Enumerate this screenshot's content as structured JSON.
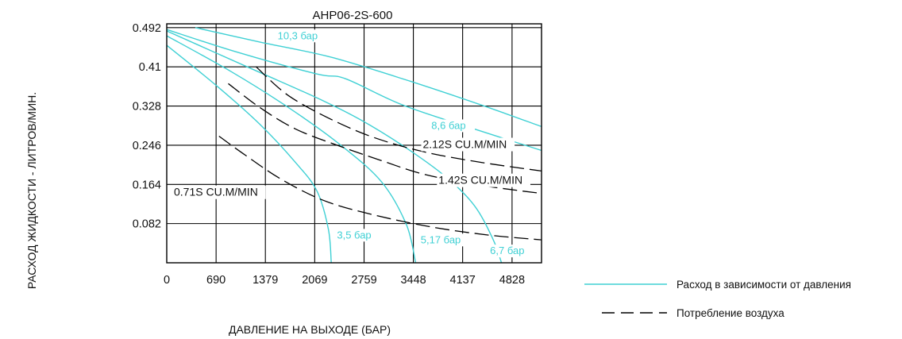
{
  "chart_data": {
    "type": "line",
    "title": "AHP06-2S-600",
    "xlabel": "ДАВЛЕНИЕ НА ВЫХОДЕ (БАР)",
    "ylabel": "РАСХОД ЖИДКОСТИ - ЛИТРОВ/МИН.",
    "xlim": [
      0,
      5240
    ],
    "ylim": [
      0,
      0.5
    ],
    "x_ticks": [
      0,
      690,
      1379,
      2069,
      2759,
      3448,
      4137,
      4828
    ],
    "x_tick_labels": [
      "0",
      "690",
      "1379",
      "2069",
      "2759",
      "3448",
      "4137",
      "4828"
    ],
    "y_ticks": [
      0.082,
      0.164,
      0.246,
      0.328,
      0.41,
      0.492
    ],
    "y_tick_labels": [
      "0.082",
      "0.164",
      "0.246",
      "0.328",
      "0.41",
      "0.492"
    ],
    "grid": true,
    "legend_position": "bottom-right",
    "legend": [
      {
        "label": "Расход в зависимости от давления",
        "style": "solid",
        "color": "#3fd0d4"
      },
      {
        "label": "Потребление воздуха",
        "style": "dashed",
        "color": "#000000"
      }
    ],
    "series": [
      {
        "name": "3,5 бар",
        "style": "solid",
        "color": "#3fd0d4",
        "label_at": [
          2380,
          0.051
        ],
        "points": [
          [
            0,
            0.455
          ],
          [
            700,
            0.37
          ],
          [
            1300,
            0.29
          ],
          [
            1800,
            0.21
          ],
          [
            2100,
            0.15
          ],
          [
            2260,
            0.07
          ],
          [
            2300,
            0.0
          ]
        ]
      },
      {
        "name": "5,17 бар",
        "style": "solid",
        "color": "#3fd0d4",
        "label_at": [
          3550,
          0.041
        ],
        "points": [
          [
            0,
            0.475
          ],
          [
            900,
            0.4
          ],
          [
            1700,
            0.325
          ],
          [
            2400,
            0.25
          ],
          [
            3000,
            0.17
          ],
          [
            3350,
            0.08
          ],
          [
            3480,
            0.0
          ]
        ]
      },
      {
        "name": "6,7 бар",
        "style": "solid",
        "color": "#3fd0d4",
        "label_at": [
          4520,
          0.018
        ],
        "points": [
          [
            0,
            0.485
          ],
          [
            1200,
            0.405
          ],
          [
            2100,
            0.345
          ],
          [
            2700,
            0.3
          ],
          [
            3300,
            0.245
          ],
          [
            3900,
            0.18
          ],
          [
            4300,
            0.12
          ],
          [
            4560,
            0.05
          ],
          [
            4680,
            0.0
          ]
        ]
      },
      {
        "name": "8,6 бар",
        "style": "solid",
        "color": "#3fd0d4",
        "label_at": [
          3700,
          0.28
        ],
        "points": [
          [
            0,
            0.488
          ],
          [
            1000,
            0.44
          ],
          [
            2100,
            0.395
          ],
          [
            2500,
            0.385
          ],
          [
            3300,
            0.33
          ],
          [
            4300,
            0.28
          ],
          [
            5240,
            0.235
          ]
        ]
      },
      {
        "name": "10,3 бар",
        "style": "solid",
        "color": "#3fd0d4",
        "label_at": [
          1550,
          0.468
        ],
        "points": [
          [
            400,
            0.492
          ],
          [
            1300,
            0.462
          ],
          [
            2300,
            0.43
          ],
          [
            3400,
            0.38
          ],
          [
            4400,
            0.33
          ],
          [
            5240,
            0.285
          ]
        ]
      },
      {
        "name": "2.12S CU.M/MIN",
        "style": "dashed",
        "color": "#000000",
        "label_at": [
          3580,
          0.24
        ],
        "points": [
          [
            1250,
            0.41
          ],
          [
            1700,
            0.35
          ],
          [
            2300,
            0.3
          ],
          [
            2900,
            0.262
          ],
          [
            3600,
            0.232
          ],
          [
            4400,
            0.21
          ],
          [
            5240,
            0.192
          ]
        ]
      },
      {
        "name": "1.42S CU.M/MIN",
        "style": "dashed",
        "color": "#000000",
        "label_at": [
          3800,
          0.165
        ],
        "points": [
          [
            860,
            0.375
          ],
          [
            1300,
            0.325
          ],
          [
            1800,
            0.28
          ],
          [
            2400,
            0.245
          ],
          [
            3000,
            0.214
          ],
          [
            3600,
            0.185
          ],
          [
            4400,
            0.162
          ],
          [
            5240,
            0.145
          ]
        ]
      },
      {
        "name": "0.71S CU.M/MIN",
        "style": "dashed",
        "color": "#000000",
        "label_at": [
          100,
          0.14
        ],
        "points": [
          [
            730,
            0.265
          ],
          [
            1100,
            0.225
          ],
          [
            1600,
            0.175
          ],
          [
            2200,
            0.13
          ],
          [
            2900,
            0.1
          ],
          [
            3700,
            0.075
          ],
          [
            4500,
            0.058
          ],
          [
            5240,
            0.048
          ]
        ]
      }
    ]
  }
}
